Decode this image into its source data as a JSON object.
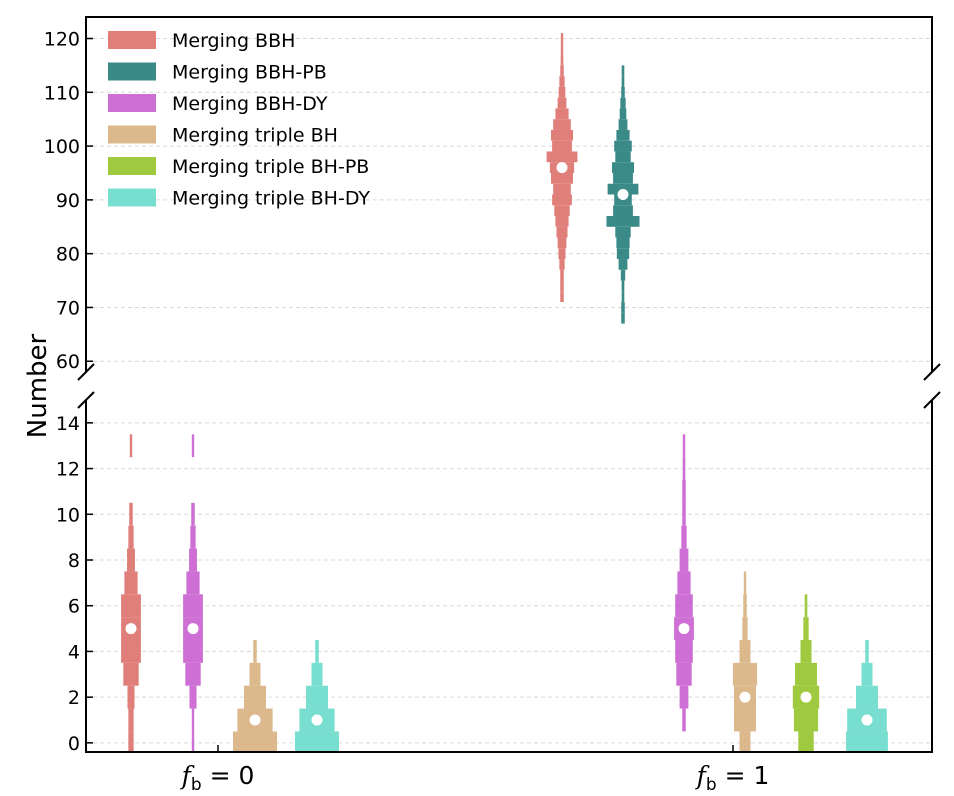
{
  "chart_data": {
    "type": "violin-histogram",
    "ylabel": "Number",
    "groups": [
      {
        "label": "f_b = 0",
        "main": "f",
        "sub": "b",
        "rest": " = 0"
      },
      {
        "label": "f_b = 1",
        "main": "f",
        "sub": "b",
        "rest": " = 1"
      }
    ],
    "upper_axis": {
      "ylim": [
        58,
        124
      ],
      "ticks": [
        60,
        70,
        80,
        90,
        100,
        110,
        120
      ]
    },
    "lower_axis": {
      "ylim": [
        -0.4,
        15
      ],
      "ticks": [
        0,
        2,
        4,
        6,
        8,
        10,
        12,
        14
      ]
    },
    "grid": true,
    "legend": {
      "placement": "top-left",
      "entries": [
        {
          "name": "Merging BBH",
          "color": "#e07f7a"
        },
        {
          "name": "Merging BBH-PB",
          "color": "#3a8a88"
        },
        {
          "name": "Merging BBH-DY",
          "color": "#cd6fd4"
        },
        {
          "name": "Merging triple BH",
          "color": "#dbb98c"
        },
        {
          "name": "Merging triple BH-PB",
          "color": "#9fc93e"
        },
        {
          "name": "Merging triple BH-DY",
          "color": "#78ded0"
        }
      ]
    },
    "series": [
      {
        "name": "Merging BBH",
        "group": "f_b = 0",
        "x": 131,
        "median": 5,
        "bins": [
          [
            0,
            0.12
          ],
          [
            1,
            0.12
          ],
          [
            2,
            0.16
          ],
          [
            3,
            0.35
          ],
          [
            4,
            0.45
          ],
          [
            5,
            0.45
          ],
          [
            6,
            0.45
          ],
          [
            7,
            0.3
          ],
          [
            8,
            0.18
          ],
          [
            9,
            0.12
          ],
          [
            10,
            0.08
          ],
          [
            13,
            0.04
          ]
        ]
      },
      {
        "name": "Merging BBH-DY",
        "group": "f_b = 0",
        "x": 193,
        "median": 5,
        "bins": [
          [
            0,
            0.05
          ],
          [
            1,
            0.05
          ],
          [
            2,
            0.16
          ],
          [
            3,
            0.35
          ],
          [
            4,
            0.45
          ],
          [
            5,
            0.45
          ],
          [
            6,
            0.45
          ],
          [
            7,
            0.3
          ],
          [
            8,
            0.18
          ],
          [
            9,
            0.12
          ],
          [
            10,
            0.08
          ],
          [
            13,
            0.04
          ]
        ]
      },
      {
        "name": "Merging triple BH",
        "group": "f_b = 0",
        "x": 255,
        "median": 1,
        "bins": [
          [
            0,
            1.0
          ],
          [
            1,
            0.8
          ],
          [
            2,
            0.5
          ],
          [
            3,
            0.25
          ],
          [
            4,
            0.08
          ]
        ]
      },
      {
        "name": "Merging triple BH-DY",
        "group": "f_b = 0",
        "x": 317,
        "median": 1,
        "bins": [
          [
            0,
            1.0
          ],
          [
            1,
            0.8
          ],
          [
            2,
            0.5
          ],
          [
            3,
            0.25
          ],
          [
            4,
            0.08
          ]
        ]
      },
      {
        "name": "Merging BBH",
        "group": "f_b = 1",
        "x": 562,
        "median": 96,
        "bins": [
          [
            72,
            0.08
          ],
          [
            74,
            0.08
          ],
          [
            76,
            0.08
          ],
          [
            78,
            0.12
          ],
          [
            80,
            0.16
          ],
          [
            82,
            0.2
          ],
          [
            84,
            0.25
          ],
          [
            86,
            0.3
          ],
          [
            88,
            0.35
          ],
          [
            90,
            0.45
          ],
          [
            92,
            0.4
          ],
          [
            94,
            0.5
          ],
          [
            96,
            0.55
          ],
          [
            98,
            0.7
          ],
          [
            100,
            0.45
          ],
          [
            102,
            0.5
          ],
          [
            104,
            0.4
          ],
          [
            106,
            0.3
          ],
          [
            108,
            0.2
          ],
          [
            110,
            0.15
          ],
          [
            112,
            0.12
          ],
          [
            114,
            0.08
          ],
          [
            116,
            0.06
          ],
          [
            118,
            0.05
          ],
          [
            120,
            0.05
          ]
        ]
      },
      {
        "name": "Merging BBH-PB",
        "group": "f_b = 1",
        "x": 623,
        "median": 91,
        "bins": [
          [
            68,
            0.08
          ],
          [
            70,
            0.08
          ],
          [
            72,
            0.06
          ],
          [
            74,
            0.06
          ],
          [
            76,
            0.1
          ],
          [
            78,
            0.2
          ],
          [
            80,
            0.28
          ],
          [
            82,
            0.3
          ],
          [
            84,
            0.35
          ],
          [
            86,
            0.75
          ],
          [
            88,
            0.45
          ],
          [
            90,
            0.4
          ],
          [
            92,
            0.7
          ],
          [
            94,
            0.45
          ],
          [
            96,
            0.5
          ],
          [
            98,
            0.35
          ],
          [
            100,
            0.4
          ],
          [
            102,
            0.3
          ],
          [
            104,
            0.2
          ],
          [
            106,
            0.15
          ],
          [
            108,
            0.12
          ],
          [
            110,
            0.08
          ],
          [
            112,
            0.06
          ],
          [
            114,
            0.06
          ]
        ]
      },
      {
        "name": "Merging BBH-DY",
        "group": "f_b = 1",
        "x": 684,
        "median": 5,
        "bins": [
          [
            1,
            0.08
          ],
          [
            2,
            0.2
          ],
          [
            3,
            0.35
          ],
          [
            4,
            0.4
          ],
          [
            5,
            0.45
          ],
          [
            6,
            0.4
          ],
          [
            7,
            0.3
          ],
          [
            8,
            0.2
          ],
          [
            9,
            0.12
          ],
          [
            10,
            0.08
          ],
          [
            11,
            0.08
          ],
          [
            12,
            0.06
          ],
          [
            13,
            0.04
          ]
        ]
      },
      {
        "name": "Merging triple BH",
        "group": "f_b = 1",
        "x": 745,
        "median": 2,
        "bins": [
          [
            0,
            0.25
          ],
          [
            1,
            0.5
          ],
          [
            2,
            0.5
          ],
          [
            3,
            0.55
          ],
          [
            4,
            0.25
          ],
          [
            5,
            0.12
          ],
          [
            6,
            0.08
          ],
          [
            7,
            0.05
          ]
        ]
      },
      {
        "name": "Merging triple BH-PB",
        "group": "f_b = 1",
        "x": 806,
        "median": 2,
        "bins": [
          [
            0,
            0.35
          ],
          [
            1,
            0.55
          ],
          [
            2,
            0.6
          ],
          [
            3,
            0.5
          ],
          [
            4,
            0.25
          ],
          [
            5,
            0.12
          ],
          [
            6,
            0.06
          ]
        ]
      },
      {
        "name": "Merging triple BH-DY",
        "group": "f_b = 1",
        "x": 867,
        "median": 1,
        "bins": [
          [
            0,
            0.95
          ],
          [
            1,
            0.9
          ],
          [
            2,
            0.5
          ],
          [
            3,
            0.25
          ],
          [
            4,
            0.08
          ]
        ]
      }
    ]
  }
}
